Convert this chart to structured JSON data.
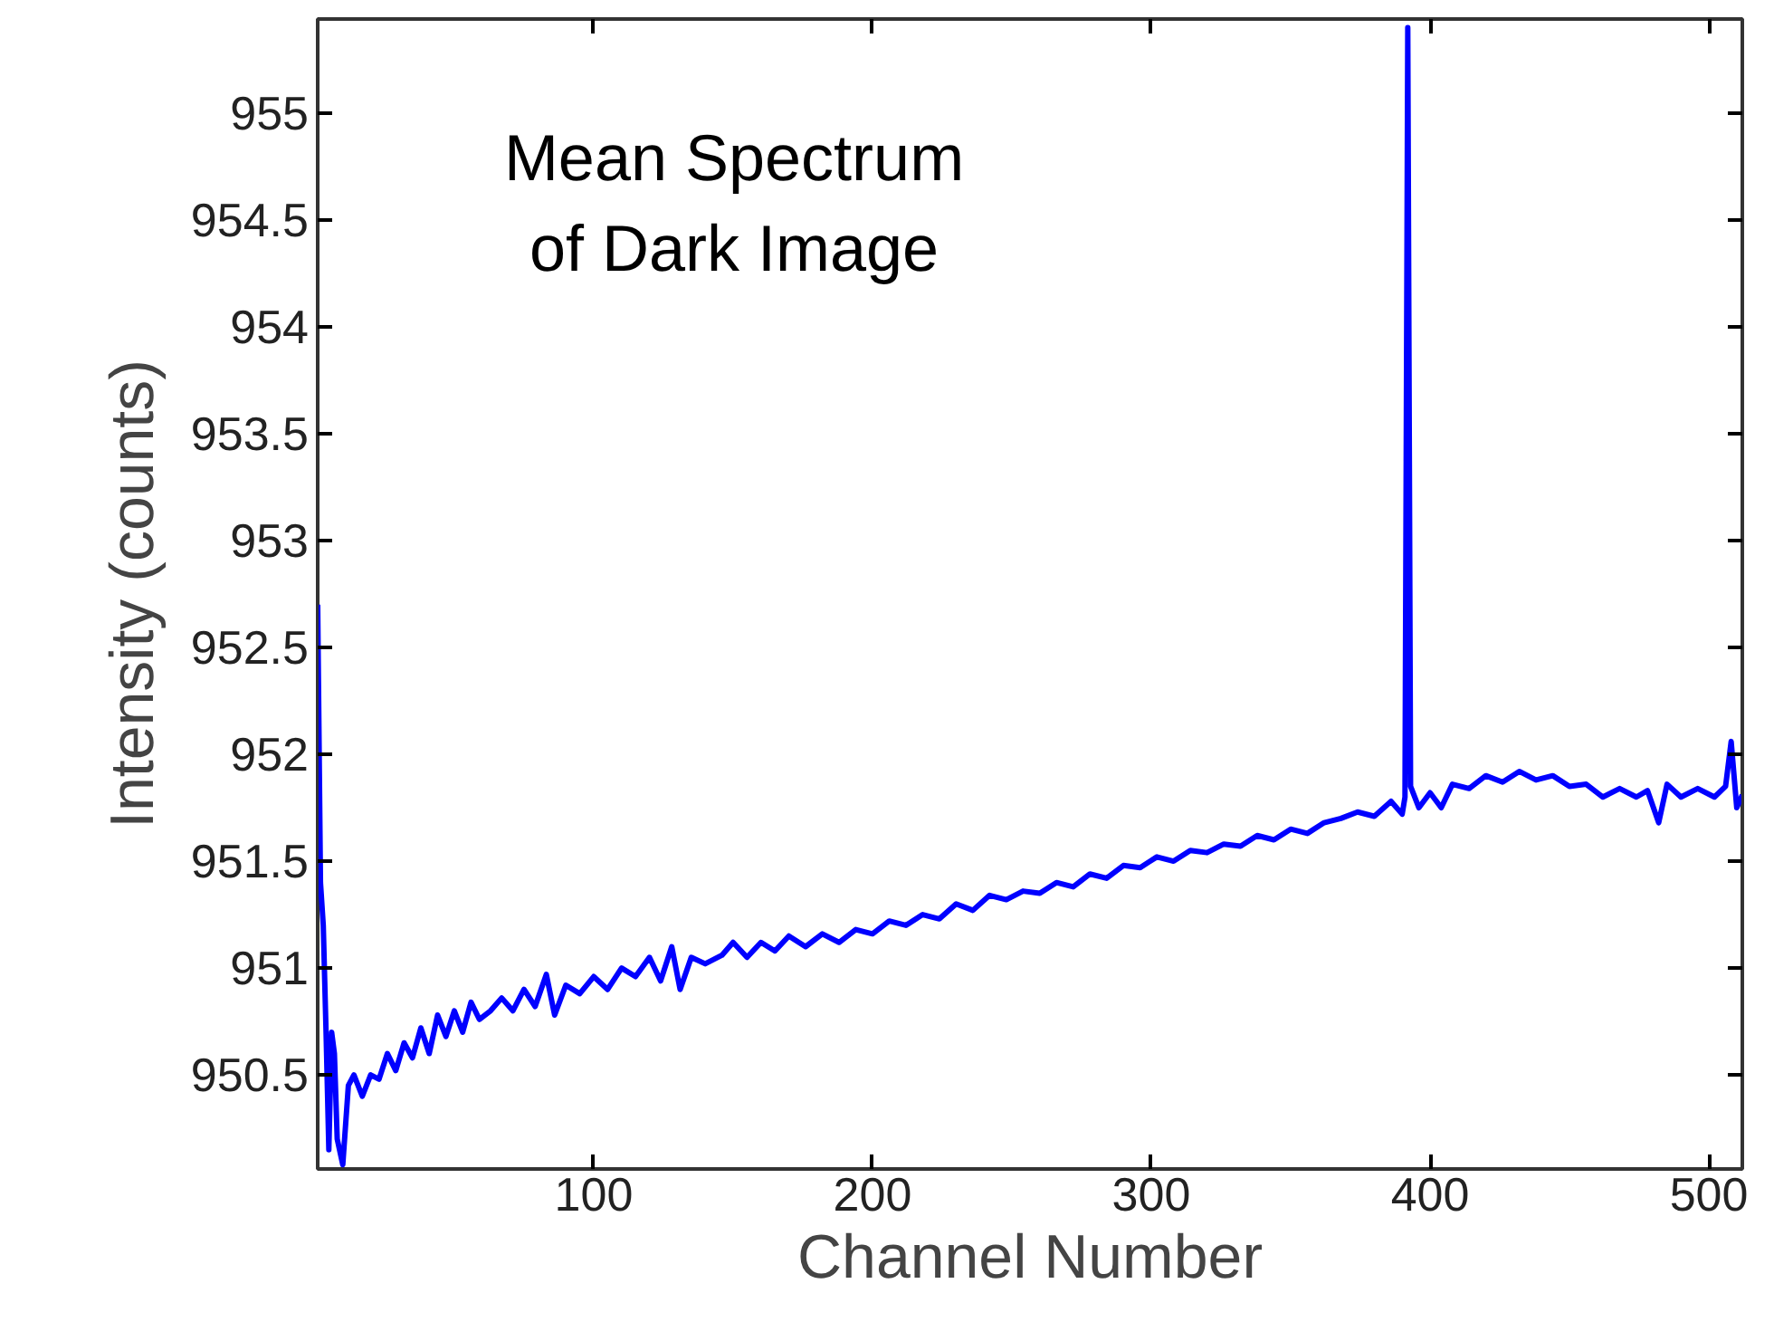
{
  "chart_data": {
    "type": "line",
    "title": "Mean Spectrum\nof Dark Image",
    "xlabel": "Channel Number",
    "ylabel": "Intensity (counts)",
    "xlim": [
      1,
      512
    ],
    "ylim": [
      950.06,
      955.44
    ],
    "xticks": [
      100,
      200,
      300,
      400,
      500
    ],
    "yticks": [
      950.5,
      {
        "value": 951,
        "label": "951"
      },
      951.5,
      {
        "value": 952,
        "label": "952"
      },
      952.5,
      {
        "value": 953,
        "label": "953"
      },
      953.5,
      {
        "value": 954,
        "label": "954"
      },
      954.5,
      {
        "value": 955,
        "label": "955"
      }
    ],
    "grid": false,
    "marker": "none",
    "line_style": "solid",
    "series": [
      {
        "color": "#0000ff",
        "x": [
          1,
          2,
          3,
          4,
          5,
          6,
          7,
          8,
          10,
          12,
          14,
          17,
          20,
          23,
          26,
          29,
          32,
          35,
          38,
          41,
          44,
          47,
          50,
          53,
          56,
          59,
          63,
          67,
          71,
          75,
          79,
          83,
          86,
          90,
          95,
          100,
          105,
          110,
          115,
          120,
          124,
          128,
          131,
          135,
          140,
          146,
          150,
          155,
          160,
          165,
          170,
          176,
          182,
          188,
          194,
          200,
          206,
          212,
          218,
          224,
          230,
          236,
          242,
          248,
          254,
          260,
          266,
          272,
          278,
          284,
          290,
          296,
          302,
          308,
          314,
          320,
          326,
          332,
          338,
          344,
          350,
          356,
          362,
          368,
          374,
          380,
          386,
          390,
          391,
          392,
          393,
          396,
          400,
          404,
          408,
          414,
          420,
          426,
          432,
          438,
          444,
          450,
          456,
          462,
          468,
          474,
          478,
          482,
          485,
          490,
          496,
          502,
          506,
          508,
          510,
          512
        ],
        "values": [
          952.7,
          951.4,
          951.2,
          950.7,
          950.15,
          950.7,
          950.6,
          950.2,
          950.08,
          950.45,
          950.5,
          950.4,
          950.5,
          950.48,
          950.6,
          950.52,
          950.65,
          950.58,
          950.72,
          950.6,
          950.78,
          950.68,
          950.8,
          950.7,
          950.84,
          950.76,
          950.8,
          950.86,
          950.8,
          950.9,
          950.82,
          950.97,
          950.78,
          950.92,
          950.88,
          950.96,
          950.9,
          951.0,
          950.96,
          951.05,
          950.94,
          951.1,
          950.9,
          951.05,
          951.02,
          951.06,
          951.12,
          951.05,
          951.12,
          951.08,
          951.15,
          951.1,
          951.16,
          951.12,
          951.18,
          951.16,
          951.22,
          951.2,
          951.25,
          951.23,
          951.3,
          951.27,
          951.34,
          951.32,
          951.36,
          951.35,
          951.4,
          951.38,
          951.44,
          951.42,
          951.48,
          951.47,
          951.52,
          951.5,
          951.55,
          951.54,
          951.58,
          951.57,
          951.62,
          951.6,
          951.65,
          951.63,
          951.68,
          951.7,
          951.73,
          951.71,
          951.78,
          951.72,
          951.8,
          955.4,
          951.85,
          951.75,
          951.82,
          951.75,
          951.86,
          951.84,
          951.9,
          951.87,
          951.92,
          951.88,
          951.9,
          951.85,
          951.86,
          951.8,
          951.84,
          951.8,
          951.83,
          951.68,
          951.86,
          951.8,
          951.84,
          951.8,
          951.85,
          952.06,
          951.75,
          951.81
        ]
      }
    ]
  }
}
